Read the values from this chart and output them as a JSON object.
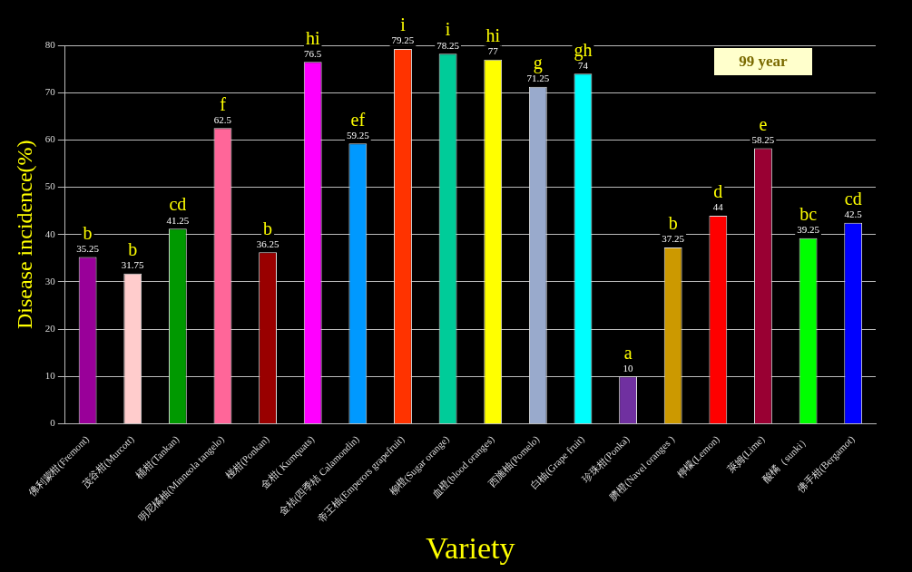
{
  "chart_data": {
    "type": "bar",
    "xlabel": "Variety",
    "ylabel": "Disease incidence(%)",
    "categories": [
      "佛利蒙柑(Fremont)",
      "茂谷柑(Murcott)",
      "桶柑(Tankan)",
      "明尼橘柚(Minneola tangelo)",
      "椪柑(Ponkan)",
      "金柑( Kumquats)",
      "金桔(四季桔 Calamondin)",
      "帝王柚(Emperors grapefruit)",
      "柳橙(Sugar orange)",
      "血橙(blood oranges)",
      "西施柚(Pomelo)",
      "白柚(Grape fruit)",
      "珍珠柑(Ponka)",
      "臍橙(Navel oranges )",
      "檸檬(Lemon)",
      "萊姆(Lime)",
      "酸橘（sunki）",
      "佛手柑(Bergamot)"
    ],
    "values": [
      35.25,
      31.75,
      41.25,
      62.5,
      36.25,
      76.5,
      59.25,
      79.25,
      78.25,
      77,
      71.25,
      74,
      10,
      37.25,
      44,
      58.25,
      39.25,
      42.5
    ],
    "colors": [
      "#990099",
      "#ffcccc",
      "#009900",
      "#ff6699",
      "#990000",
      "#ff00ff",
      "#0099ff",
      "#ff3300",
      "#00cc99",
      "#ffff00",
      "#99aacc",
      "#00ffff",
      "#7030a0",
      "#cc9900",
      "#ff0000",
      "#990033",
      "#00ff00",
      "#0000ff"
    ],
    "data_labels": true,
    "ylim": [
      0,
      80
    ],
    "yticks": [
      0,
      10,
      20,
      30,
      40,
      50,
      60,
      70,
      80
    ],
    "grid": "y",
    "legend": false,
    "annotations": [
      {
        "text": "b",
        "x": "佛利蒙柑(Fremont)",
        "y": 35.25
      },
      {
        "text": "b",
        "x": "茂谷柑(Murcott)",
        "y": 31.75
      },
      {
        "text": "cd",
        "x": "桶柑(Tankan)",
        "y": 41.25
      },
      {
        "text": "f",
        "x": "明尼橘柚(Minneola tangelo)",
        "y": 62.5
      },
      {
        "text": "b",
        "x": "椪柑(Ponkan)",
        "y": 36.25
      },
      {
        "text": "hi",
        "x": "金柑( Kumquats)",
        "y": 76.5
      },
      {
        "text": "ef",
        "x": "金桔(四季桔 Calamondin)",
        "y": 59.25
      },
      {
        "text": "i",
        "x": "帝王柚(Emperors grapefruit)",
        "y": 79.25
      },
      {
        "text": "i",
        "x": "柳橙(Sugar orange)",
        "y": 78.25
      },
      {
        "text": "hi",
        "x": "血橙(blood oranges)",
        "y": 77
      },
      {
        "text": "g",
        "x": "西施柚(Pomelo)",
        "y": 71.25
      },
      {
        "text": "gh",
        "x": "白柚(Grape fruit)",
        "y": 74
      },
      {
        "text": "a",
        "x": "珍珠柑(Ponka)",
        "y": 10
      },
      {
        "text": "b",
        "x": "臍橙(Navel oranges )",
        "y": 37.25
      },
      {
        "text": "d",
        "x": "檸檬(Lemon)",
        "y": 44
      },
      {
        "text": "e",
        "x": "萊姆(Lime)",
        "y": 58.25
      },
      {
        "text": "bc",
        "x": "酸橘（sunki）",
        "y": 39.25
      },
      {
        "text": "cd",
        "x": "佛手柑(Bergamot)",
        "y": 42.5
      },
      "99 year"
    ]
  }
}
